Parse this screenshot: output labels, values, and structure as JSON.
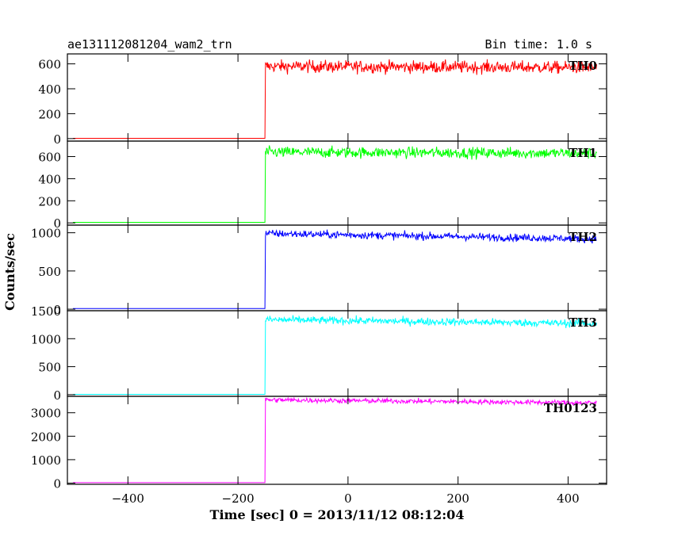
{
  "header": {
    "left_title": "ae131112081204_wam2_trn",
    "right_title": "Bin time: 1.0 s"
  },
  "chart_data": {
    "type": "line",
    "title": "ae131112081204_wam2_trn",
    "subtitle": "Bin time: 1.0 s",
    "xlabel": "Time [sec] 0 = 2013/11/12 08:12:04",
    "ylabel": "Counts/sec",
    "xlim": [
      -510,
      470
    ],
    "xticks": [
      -400,
      -200,
      0,
      200,
      400
    ],
    "x_step": 1.0,
    "panels": [
      {
        "name": "TH0",
        "color": "#ff0000",
        "ylim": [
          -20,
          680
        ],
        "yticks": [
          0,
          200,
          400,
          600
        ],
        "baseline": 2,
        "rise_time": -150,
        "plateau_start": 580,
        "plateau_end": 570,
        "noise": 25
      },
      {
        "name": "TH1",
        "color": "#00ff00",
        "ylim": [
          -20,
          740
        ],
        "yticks": [
          0,
          200,
          400,
          600
        ],
        "baseline": 5,
        "rise_time": -150,
        "plateau_start": 640,
        "plateau_end": 630,
        "noise": 25
      },
      {
        "name": "TH2",
        "color": "#0000ff",
        "ylim": [
          -20,
          1100
        ],
        "yticks": [
          0,
          500,
          1000
        ],
        "baseline": 8,
        "rise_time": -150,
        "plateau_start": 990,
        "plateau_end": 920,
        "noise": 25
      },
      {
        "name": "TH3",
        "color": "#00ffff",
        "ylim": [
          -30,
          1500
        ],
        "yticks": [
          0,
          500,
          1000,
          1500
        ],
        "baseline": 5,
        "rise_time": -150,
        "plateau_start": 1340,
        "plateau_end": 1270,
        "noise": 35
      },
      {
        "name": "TH0123",
        "color": "#ff00ff",
        "ylim": [
          -50,
          3700
        ],
        "yticks": [
          0,
          1000,
          2000,
          3000
        ],
        "baseline": 20,
        "rise_time": -150,
        "plateau_start": 3550,
        "plateau_end": 3420,
        "noise": 55
      }
    ]
  }
}
